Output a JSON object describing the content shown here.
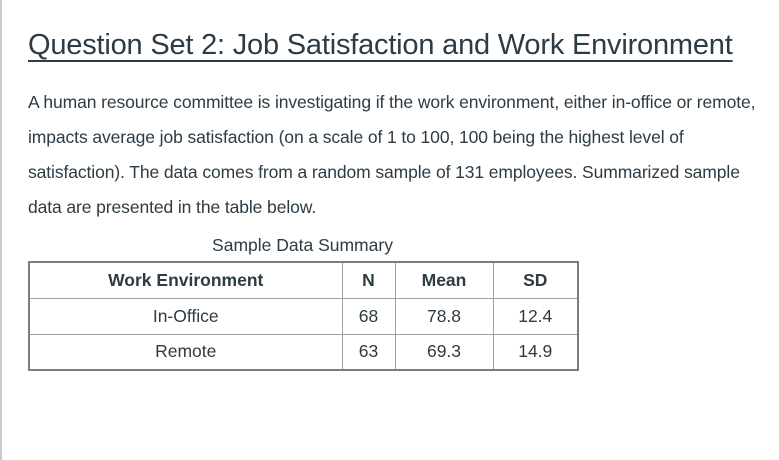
{
  "page": {
    "heading": "Question Set 2: Job Satisfaction and Work Environment",
    "paragraph": "A human resource committee is investigating if the work environment, either in-office or remote, impacts average job satisfaction (on a scale of 1 to 100, 100 being the highest level of satisfaction). The data comes from a random sample of 131 employees. Summarized sample data are presented in the table below."
  },
  "table": {
    "caption": "Sample Data Summary",
    "headers": [
      "Work Environment",
      "N",
      "Mean",
      "SD"
    ],
    "rows": [
      [
        "In-Office",
        "68",
        "78.8",
        "12.4"
      ],
      [
        "Remote",
        "63",
        "69.3",
        "14.9"
      ]
    ]
  },
  "colors": {
    "text": "#2d3b45",
    "table_border_outer": "#7d7d7d",
    "table_border_inner": "#9f9f9f",
    "page_edge": "#c7ccd1",
    "background": "#ffffff"
  }
}
